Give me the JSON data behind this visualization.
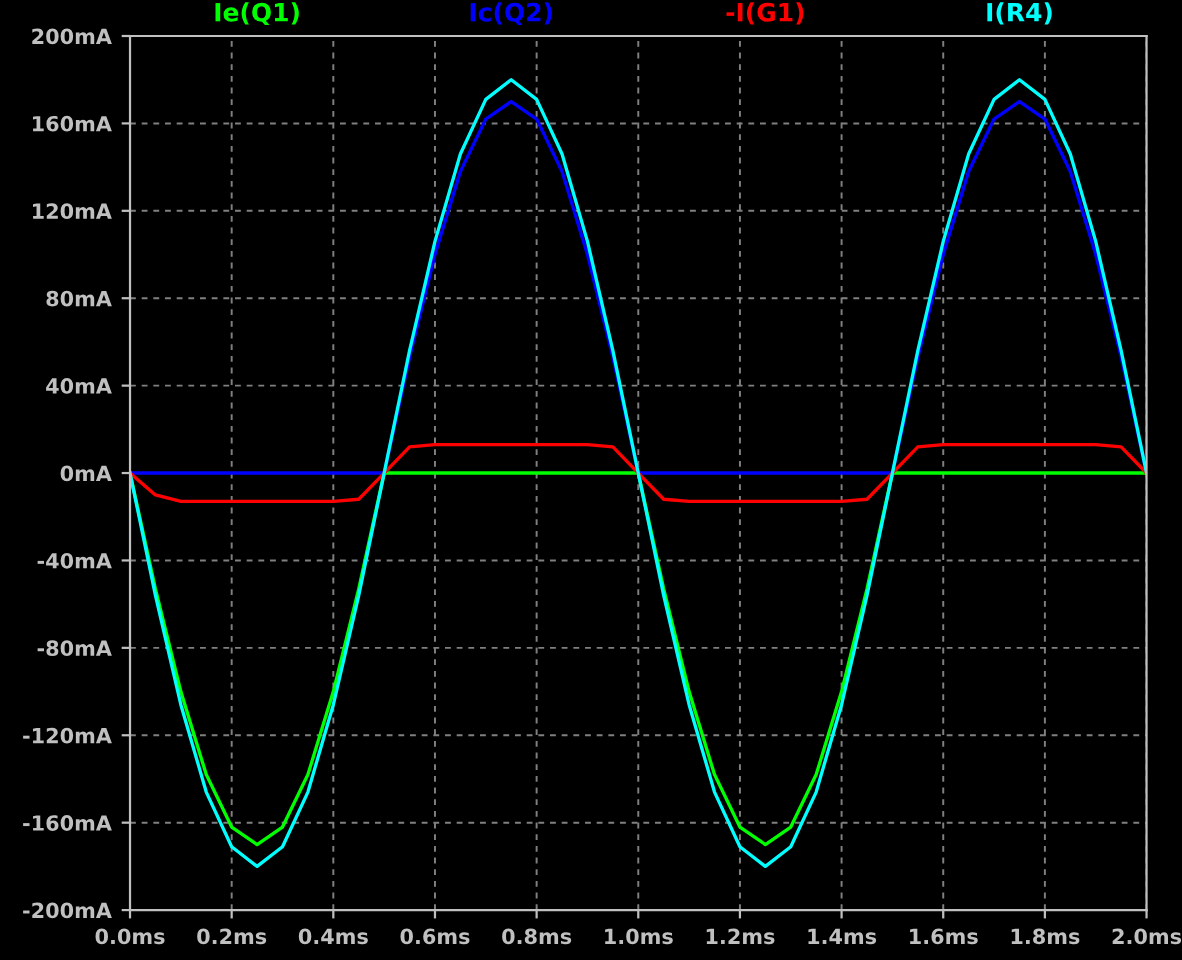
{
  "chart_data": {
    "type": "line",
    "x": [
      0,
      0.05,
      0.1,
      0.15,
      0.2,
      0.25,
      0.3,
      0.35,
      0.4,
      0.45,
      0.5,
      0.55,
      0.6,
      0.65,
      0.7,
      0.75,
      0.8,
      0.85,
      0.9,
      0.95,
      1.0,
      1.05,
      1.1,
      1.15,
      1.2,
      1.25,
      1.3,
      1.35,
      1.4,
      1.45,
      1.5,
      1.55,
      1.6,
      1.65,
      1.7,
      1.75,
      1.8,
      1.85,
      1.9,
      1.95,
      2.0
    ],
    "series": [
      {
        "name": "Ie(Q1)",
        "color": "#00ff00",
        "values": [
          0,
          -53,
          -100,
          -138,
          -162,
          -170,
          -162,
          -138,
          -100,
          -53,
          0,
          0,
          0,
          0,
          0,
          0,
          0,
          0,
          0,
          0,
          0,
          -53,
          -100,
          -138,
          -162,
          -170,
          -162,
          -138,
          -100,
          -53,
          0,
          0,
          0,
          0,
          0,
          0,
          0,
          0,
          0,
          0,
          0
        ]
      },
      {
        "name": "Ic(Q2)",
        "color": "#0000ff",
        "values": [
          0,
          0,
          0,
          0,
          0,
          0,
          0,
          0,
          0,
          0,
          0,
          53,
          100,
          138,
          162,
          170,
          162,
          138,
          100,
          53,
          0,
          0,
          0,
          0,
          0,
          0,
          0,
          0,
          0,
          0,
          0,
          53,
          100,
          138,
          162,
          170,
          162,
          138,
          100,
          53,
          0
        ]
      },
      {
        "name": "-I(G1)",
        "color": "#ff0000",
        "values": [
          0,
          -10,
          -13,
          -13,
          -13,
          -13,
          -13,
          -13,
          -13,
          -12,
          0,
          12,
          13,
          13,
          13,
          13,
          13,
          13,
          13,
          12,
          0,
          -12,
          -13,
          -13,
          -13,
          -13,
          -13,
          -13,
          -13,
          -12,
          0,
          12,
          13,
          13,
          13,
          13,
          13,
          13,
          13,
          12,
          0
        ]
      },
      {
        "name": "I(R4)",
        "color": "#00ffff",
        "values": [
          0,
          -56,
          -106,
          -146,
          -171,
          -180,
          -171,
          -146,
          -106,
          -56,
          0,
          56,
          106,
          146,
          171,
          180,
          171,
          146,
          106,
          56,
          0,
          -56,
          -106,
          -146,
          -171,
          -180,
          -171,
          -146,
          -106,
          -56,
          0,
          56,
          106,
          146,
          171,
          180,
          171,
          146,
          106,
          56,
          0
        ]
      }
    ],
    "xlim": [
      0,
      2.0
    ],
    "xticks": [
      {
        "value": 0,
        "label": "0.0ms"
      },
      {
        "value": 0.2,
        "label": "0.2ms"
      },
      {
        "value": 0.4,
        "label": "0.4ms"
      },
      {
        "value": 0.6,
        "label": "0.6ms"
      },
      {
        "value": 0.8,
        "label": "0.8ms"
      },
      {
        "value": 1.0,
        "label": "1.0ms"
      },
      {
        "value": 1.2,
        "label": "1.2ms"
      },
      {
        "value": 1.4,
        "label": "1.4ms"
      },
      {
        "value": 1.6,
        "label": "1.6ms"
      },
      {
        "value": 1.8,
        "label": "1.8ms"
      },
      {
        "value": 2.0,
        "label": "2.0ms"
      }
    ],
    "ylim": [
      -200,
      200
    ],
    "yticks": [
      {
        "value": -200,
        "label": "-200mA"
      },
      {
        "value": -160,
        "label": "-160mA"
      },
      {
        "value": -120,
        "label": "-120mA"
      },
      {
        "value": -80,
        "label": "-80mA"
      },
      {
        "value": -40,
        "label": "-40mA"
      },
      {
        "value": 0,
        "label": "0mA"
      },
      {
        "value": 40,
        "label": "40mA"
      },
      {
        "value": 80,
        "label": "80mA"
      },
      {
        "value": 120,
        "label": "120mA"
      },
      {
        "value": 160,
        "label": "160mA"
      },
      {
        "value": 200,
        "label": "200mA"
      }
    ],
    "grid": true,
    "line_style": "solid",
    "marker": "none"
  }
}
